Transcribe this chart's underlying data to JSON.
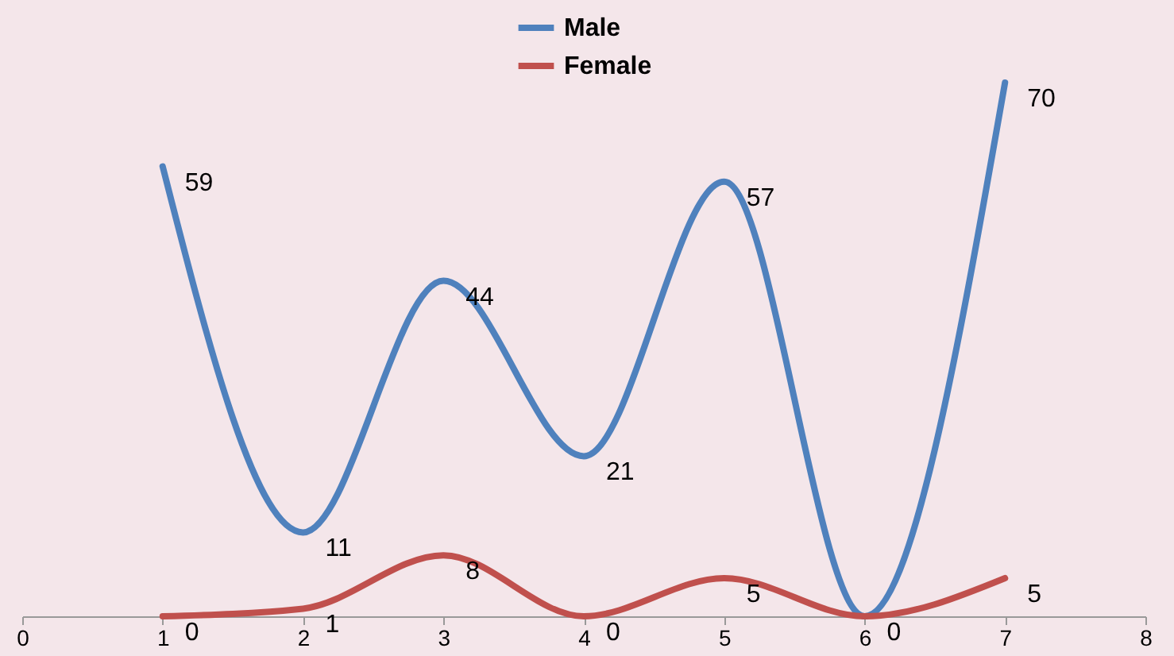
{
  "chart_data": {
    "type": "line",
    "x": [
      1,
      2,
      3,
      4,
      5,
      6,
      7
    ],
    "series": [
      {
        "name": "Male",
        "color": "#4f81bd",
        "values": [
          59,
          11,
          44,
          21,
          57,
          0,
          70
        ],
        "value_labels": [
          "59",
          "11",
          "44",
          "21",
          "57",
          null,
          "70"
        ]
      },
      {
        "name": "Female",
        "color": "#c0504d",
        "values": [
          0,
          1,
          8,
          0,
          5,
          0,
          5
        ],
        "value_labels": [
          "0",
          "1",
          "8",
          "0",
          "5",
          "0",
          "5"
        ]
      }
    ],
    "xlim": [
      0,
      8
    ],
    "xticks": [
      0,
      1,
      2,
      3,
      4,
      5,
      6,
      7,
      8
    ],
    "legend": "top",
    "tick_labels": "x",
    "grid": false,
    "marker": "none",
    "line_style": "solid"
  }
}
